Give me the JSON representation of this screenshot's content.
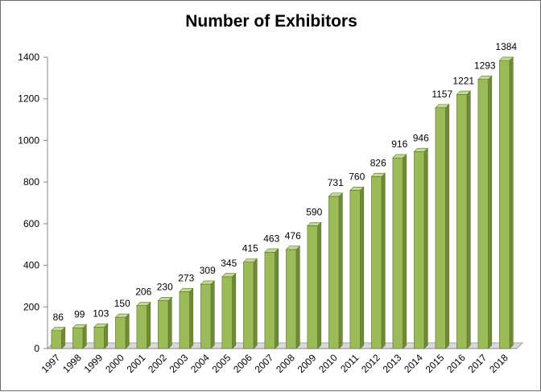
{
  "chart_data": {
    "type": "bar",
    "title": "Number of Exhibitors",
    "xlabel": "",
    "ylabel": "",
    "categories": [
      "1997",
      "1998",
      "1999",
      "2000",
      "2001",
      "2002",
      "2003",
      "2004",
      "2005",
      "2006",
      "2007",
      "2008",
      "2009",
      "2010",
      "2011",
      "2012",
      "2013",
      "2014",
      "2015",
      "2016",
      "2017",
      "2018"
    ],
    "values": [
      86,
      99,
      103,
      150,
      206,
      230,
      273,
      309,
      345,
      415,
      463,
      476,
      590,
      731,
      760,
      826,
      916,
      946,
      1157,
      1221,
      1293,
      1384
    ],
    "ylim": [
      0,
      1400
    ],
    "yticks": [
      "0",
      "200",
      "400",
      "600",
      "800",
      "1000",
      "1200",
      "1400"
    ],
    "grid": false,
    "legend": "none",
    "style": "3d-column",
    "colors": {
      "bar_front": "#9bbb59",
      "bar_side": "#6e8a37",
      "bar_top": "#c3d69b",
      "floor": "#d9d9d9"
    }
  }
}
